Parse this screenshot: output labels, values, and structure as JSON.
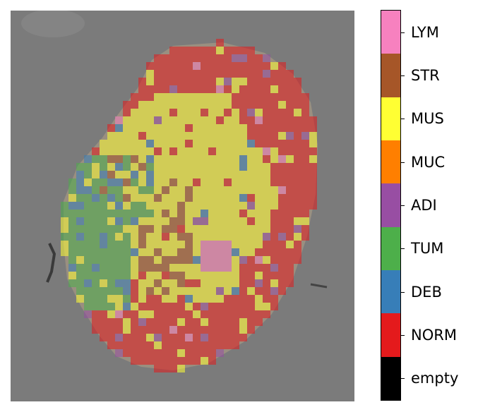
{
  "legend": {
    "classes": [
      {
        "label": "LYM",
        "color": "#f781bf"
      },
      {
        "label": "STR",
        "color": "#a65628"
      },
      {
        "label": "MUS",
        "color": "#ffff33"
      },
      {
        "label": "MUC",
        "color": "#ff7f00"
      },
      {
        "label": "ADI",
        "color": "#984ea3"
      },
      {
        "label": "TUM",
        "color": "#4daf4a"
      },
      {
        "label": "DEB",
        "color": "#377eb8"
      },
      {
        "label": "NORM",
        "color": "#e41a1c"
      },
      {
        "label": "empty",
        "color": "#000000"
      }
    ]
  },
  "map": {
    "background_color": "#7b7b7b",
    "overlay_opacity": 0.55
  }
}
